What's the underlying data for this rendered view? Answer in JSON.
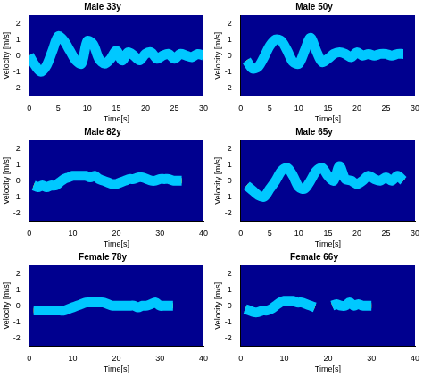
{
  "chart_data": [
    {
      "type": "line",
      "title": "Male 33y",
      "x_label": "Time[s]",
      "y_label": "Velocity [m/s]",
      "x": [
        0,
        1,
        2,
        3,
        4,
        5,
        6,
        7,
        8,
        9,
        10,
        11,
        12,
        13,
        14,
        15,
        16,
        17,
        18,
        19,
        20,
        21,
        22,
        23,
        24,
        25,
        26,
        27,
        28,
        29,
        30
      ],
      "values": [
        0,
        -0.6,
        -1.0,
        -0.6,
        0.3,
        1.2,
        0.9,
        0.3,
        -0.3,
        -0.5,
        0.9,
        0.7,
        -0.2,
        -0.5,
        -0.2,
        0.3,
        -0.3,
        0.2,
        0,
        -0.3,
        0.1,
        0.2,
        -0.2,
        0,
        0.1,
        -0.2,
        0.1,
        0,
        -0.1,
        0.1,
        0
      ],
      "color": "#ff0000",
      "xlim": [
        0,
        30
      ],
      "xticks": [
        0,
        5,
        10,
        15,
        20,
        25,
        30
      ],
      "ylim": [
        -2.5,
        2.5
      ],
      "yticks": [
        -2,
        -1,
        0,
        1,
        2
      ],
      "grid": false
    },
    {
      "type": "line",
      "title": "Male 50y",
      "x_label": "Time[s]",
      "y_label": "Velocity [m/s]",
      "x": [
        0,
        1,
        2,
        3,
        4,
        5,
        6,
        7,
        8,
        9,
        10,
        11,
        12,
        13,
        14,
        15,
        16,
        17,
        18,
        19,
        20,
        21,
        22,
        23,
        24,
        25,
        26,
        27,
        28,
        29,
        30
      ],
      "values": [
        null,
        -0.3,
        -0.8,
        -0.7,
        -0.1,
        0.6,
        1.0,
        0.9,
        0.3,
        -0.4,
        -0.5,
        0.3,
        1.1,
        0.3,
        -0.4,
        -0.2,
        0.1,
        0.2,
        0.1,
        -0.1,
        0.2,
        0,
        0.1,
        0,
        0.1,
        0.1,
        0,
        0.1,
        0.1,
        null,
        null
      ],
      "color": "#ff0000",
      "xlim": [
        0,
        30
      ],
      "xticks": [
        0,
        5,
        10,
        15,
        20,
        25,
        30
      ],
      "ylim": [
        -2.5,
        2.5
      ],
      "yticks": [
        -2,
        -1,
        0,
        1,
        2
      ],
      "grid": false
    },
    {
      "type": "line",
      "title": "Male 82y",
      "x_label": "Time[s]",
      "y_label": "Velocity [m/s]",
      "x": [
        0,
        1,
        2,
        3,
        4,
        5,
        6,
        7,
        8,
        9,
        10,
        11,
        12,
        13,
        14,
        15,
        16,
        17,
        18,
        19,
        20,
        21,
        22,
        23,
        24,
        25,
        26,
        27,
        28,
        29,
        30,
        31,
        32,
        33,
        34,
        35,
        36,
        37,
        38,
        39,
        40
      ],
      "values": [
        null,
        -0.3,
        -0.4,
        -0.3,
        -0.4,
        -0.3,
        -0.3,
        -0.1,
        0.1,
        0.2,
        0.3,
        0.3,
        0.3,
        0.3,
        0.2,
        0.3,
        0.1,
        0,
        -0.1,
        -0.2,
        -0.2,
        -0.1,
        0,
        0.1,
        0.1,
        0.2,
        0.2,
        0.1,
        0,
        0,
        0.1,
        0.1,
        0.1,
        0,
        0,
        0,
        null,
        null,
        null,
        null,
        null
      ],
      "color": "#ff0000",
      "xlim": [
        0,
        40
      ],
      "xticks": [
        0,
        10,
        20,
        30,
        40
      ],
      "ylim": [
        -2.5,
        2.5
      ],
      "yticks": [
        -2,
        -1,
        0,
        1,
        2
      ],
      "grid": false
    },
    {
      "type": "line",
      "title": "Male 65y",
      "x_label": "Time[s]",
      "y_label": "Velocity [m/s]",
      "x": [
        0,
        1,
        2,
        3,
        4,
        5,
        6,
        7,
        8,
        9,
        10,
        11,
        12,
        13,
        14,
        15,
        16,
        17,
        18,
        19,
        20,
        21,
        22,
        23,
        24,
        25,
        26,
        27,
        28,
        29,
        30
      ],
      "values": [
        null,
        -0.3,
        -0.6,
        -0.9,
        -1.0,
        -0.5,
        0,
        0.6,
        0.8,
        0.3,
        -0.4,
        -0.5,
        0,
        0.6,
        0.8,
        0.3,
        0,
        0.9,
        0.1,
        0,
        -0.2,
        0,
        0.3,
        0.1,
        0,
        0.2,
        0,
        0.3,
        0,
        null,
        null
      ],
      "color": "#ff0000",
      "xlim": [
        0,
        30
      ],
      "xticks": [
        0,
        5,
        10,
        15,
        20,
        25,
        30
      ],
      "ylim": [
        -2.5,
        2.5
      ],
      "yticks": [
        -2,
        -1,
        0,
        1,
        2
      ],
      "grid": false
    },
    {
      "type": "line",
      "title": "Female 78y",
      "x_label": "Time[s]",
      "y_label": "Velocity [m/s]",
      "x": [
        0,
        1,
        2,
        3,
        4,
        5,
        6,
        7,
        8,
        9,
        10,
        11,
        12,
        13,
        14,
        15,
        16,
        17,
        18,
        19,
        20,
        21,
        22,
        23,
        24,
        25,
        26,
        27,
        28,
        29,
        30,
        31,
        32,
        33,
        34,
        35,
        36,
        37,
        38,
        39,
        40
      ],
      "values": [
        null,
        -0.3,
        -0.3,
        -0.3,
        -0.3,
        -0.3,
        -0.3,
        -0.3,
        -0.3,
        -0.2,
        -0.1,
        0,
        0.1,
        0.2,
        0.2,
        0.2,
        0.2,
        0.2,
        0.1,
        0,
        0,
        0,
        0,
        0,
        0,
        -0.1,
        0,
        0,
        0.1,
        0.2,
        0,
        0,
        0,
        0,
        null,
        null,
        null,
        null,
        null,
        null,
        null
      ],
      "color": "#ff0000",
      "xlim": [
        0,
        40
      ],
      "xticks": [
        0,
        10,
        20,
        30,
        40
      ],
      "ylim": [
        -2.5,
        2.5
      ],
      "yticks": [
        -2,
        -1,
        0,
        1,
        2
      ],
      "grid": false
    },
    {
      "type": "line",
      "title": "Female 66y",
      "x_label": "Time[s]",
      "y_label": "Velocity [m/s]",
      "x": [
        0,
        1,
        2,
        3,
        4,
        5,
        6,
        7,
        8,
        9,
        10,
        11,
        12,
        13,
        14,
        15,
        16,
        17,
        18,
        19,
        20,
        21,
        22,
        23,
        24,
        25,
        26,
        27,
        28,
        29,
        30,
        31,
        32,
        33,
        34,
        35,
        36,
        37,
        38,
        39,
        40
      ],
      "values": [
        null,
        -0.2,
        -0.3,
        -0.4,
        -0.4,
        -0.3,
        -0.3,
        -0.2,
        0,
        0.2,
        0.3,
        0.3,
        0.3,
        0.2,
        0.2,
        0.1,
        0,
        -0.1,
        null,
        null,
        null,
        0,
        0.1,
        0,
        0,
        0.2,
        0,
        0.1,
        0,
        0,
        0,
        null,
        null,
        null,
        null,
        null,
        null,
        null,
        null,
        null,
        null
      ],
      "color": "#ff0000",
      "xlim": [
        0,
        40
      ],
      "xticks": [
        0,
        10,
        20,
        30,
        40
      ],
      "ylim": [
        -2.5,
        2.5
      ],
      "yticks": [
        -2,
        -1,
        0,
        1,
        2
      ],
      "grid": false
    }
  ]
}
